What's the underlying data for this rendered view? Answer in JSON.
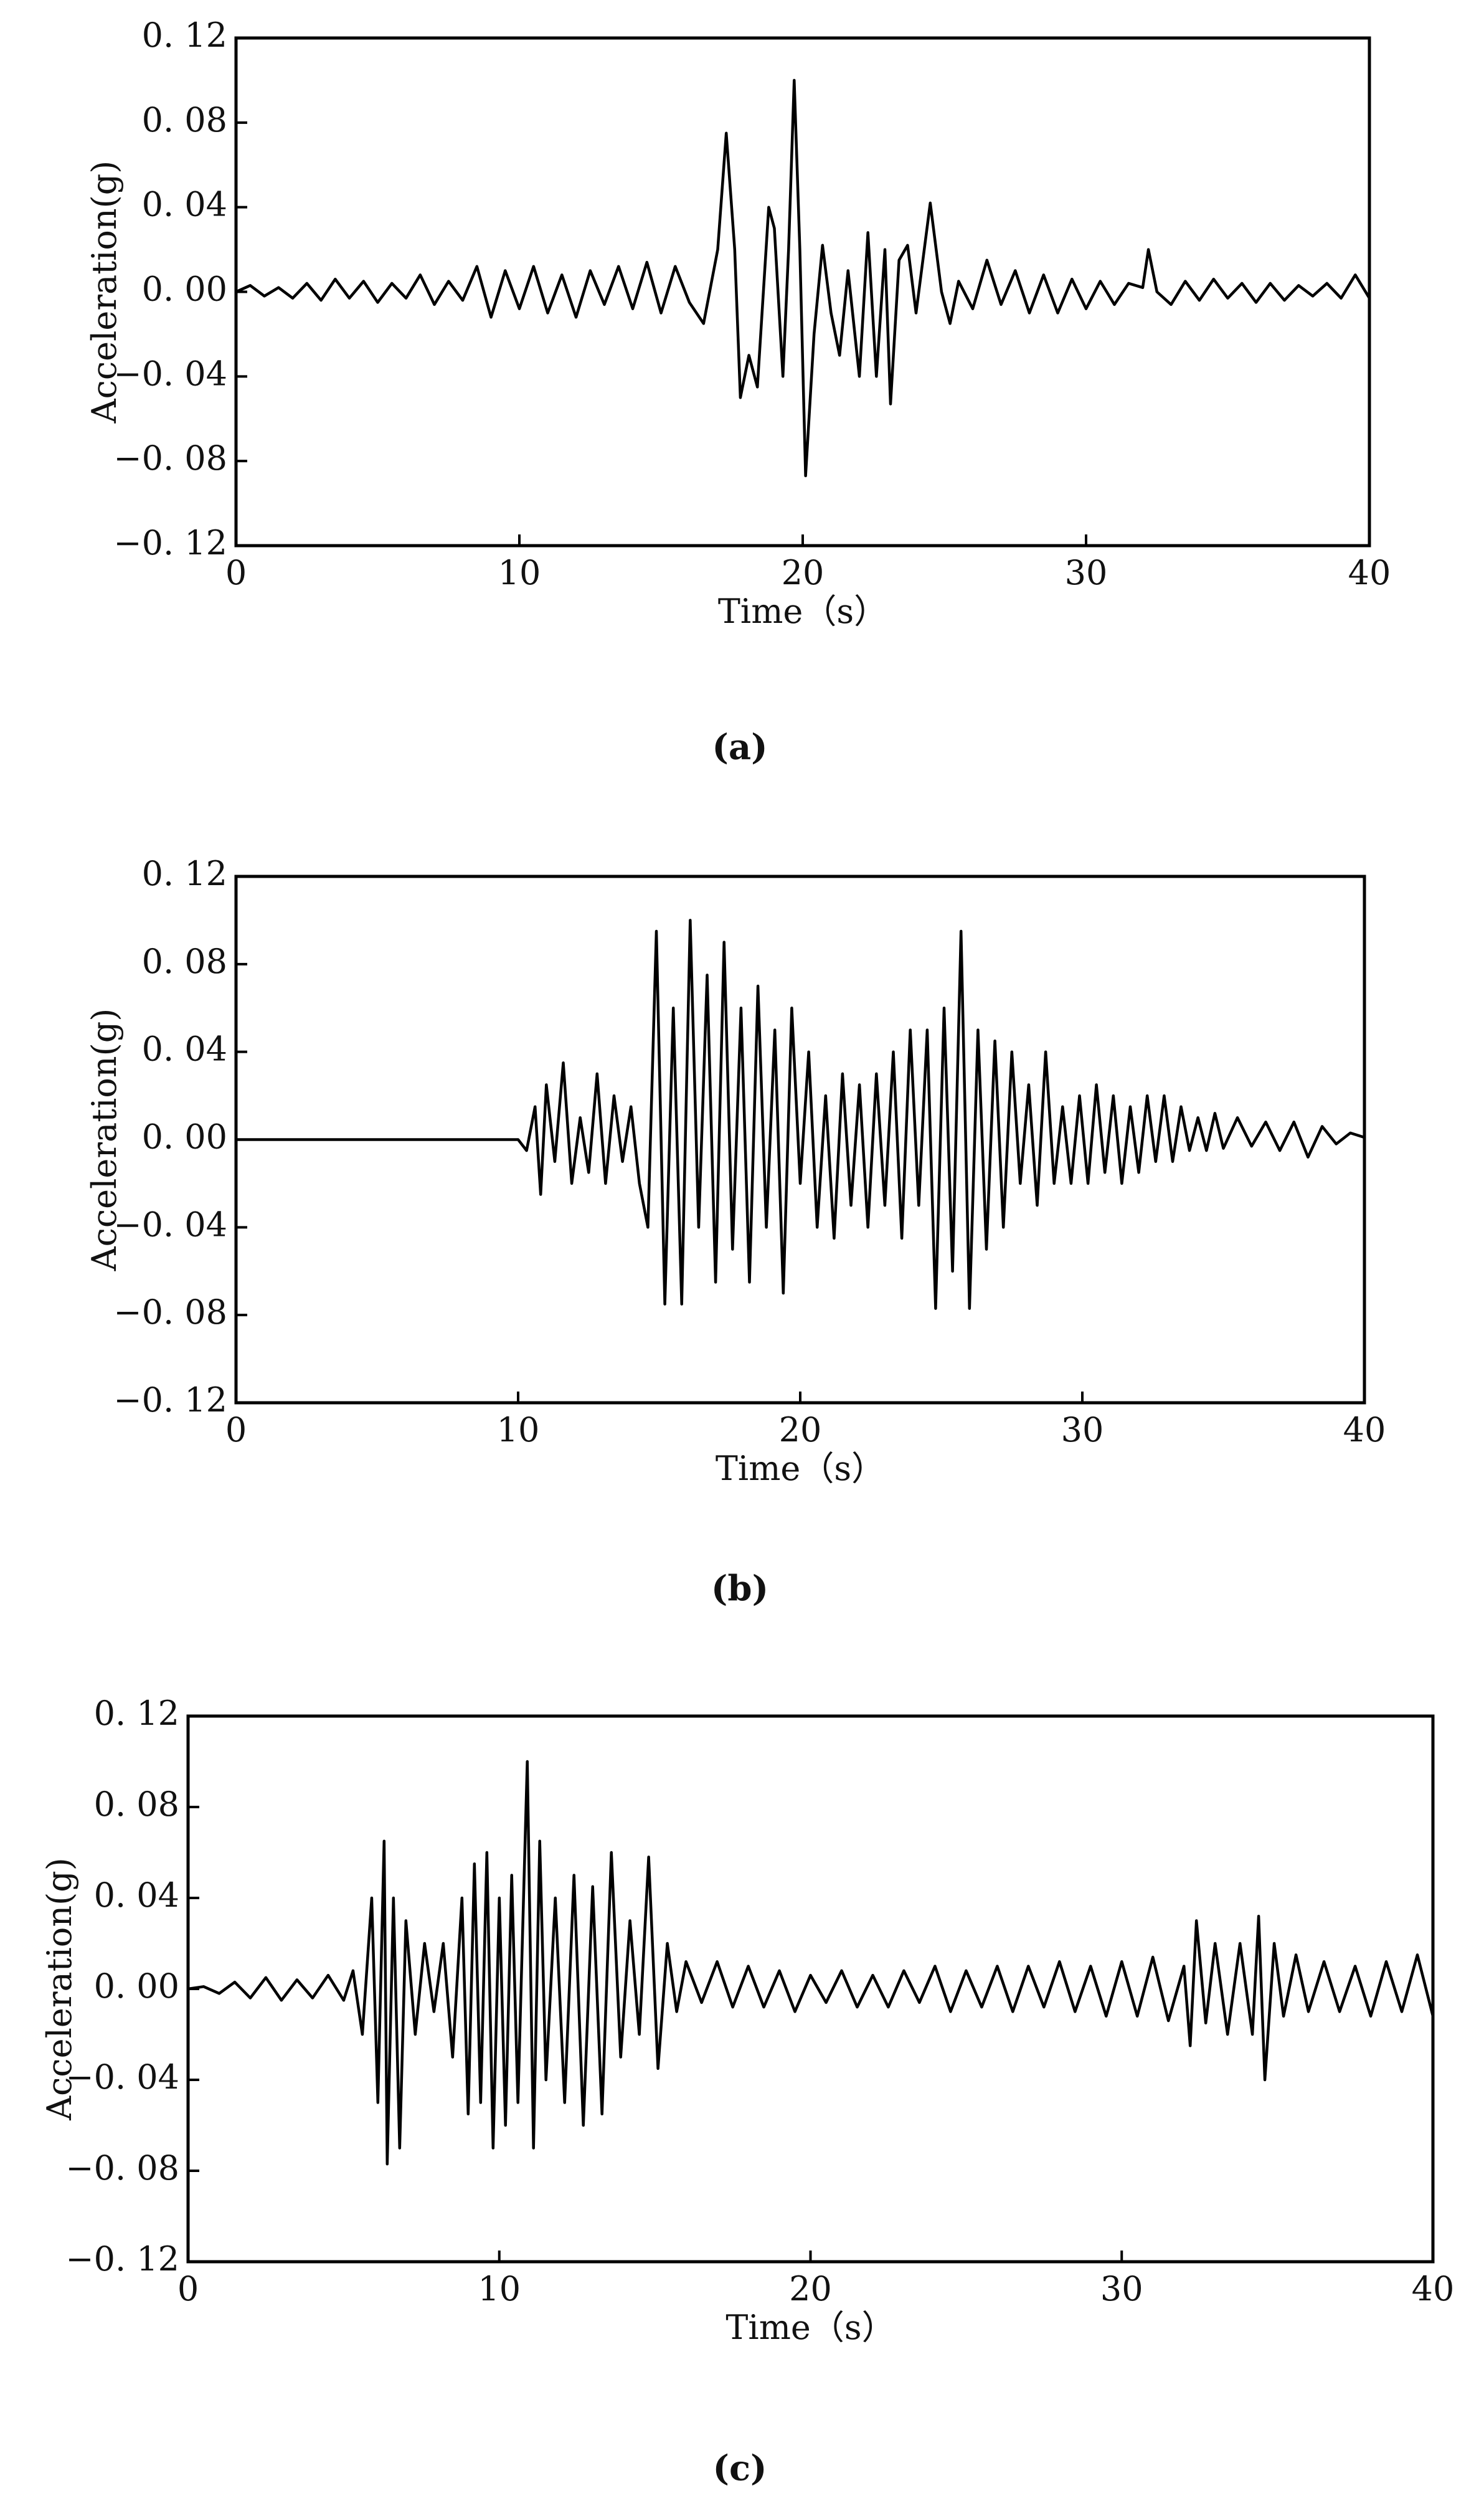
{
  "chart_data": [
    {
      "type": "line",
      "caption": "(a)",
      "xlabel": "Time（s）",
      "ylabel": "Acceleration(g)",
      "xlim": [
        0,
        40
      ],
      "xticks": [
        0,
        10,
        20,
        30,
        40
      ],
      "ylim": [
        -0.12,
        0.12
      ],
      "yticks": [
        {
          "value": -0.12,
          "label": "−0. 12"
        },
        {
          "value": -0.08,
          "label": "−0. 08"
        },
        {
          "value": -0.04,
          "label": "−0. 04"
        },
        {
          "value": 0,
          "label": "0. 00"
        },
        {
          "value": 0.04,
          "label": "0. 04"
        },
        {
          "value": 0.08,
          "label": "0. 08"
        },
        {
          "value": 0.12,
          "label": "0. 12"
        }
      ],
      "color": "#000000",
      "x": [
        0,
        0.5,
        1,
        1.5,
        2,
        2.5,
        3,
        3.5,
        4,
        4.5,
        5,
        5.5,
        6,
        6.5,
        7,
        7.5,
        8,
        8.5,
        9,
        9.5,
        10,
        10.5,
        11,
        11.5,
        12,
        12.5,
        13,
        13.5,
        14,
        14.5,
        15,
        15.5,
        16,
        16.5,
        17,
        17.3,
        17.6,
        17.8,
        18.1,
        18.4,
        18.8,
        19,
        19.3,
        19.5,
        19.7,
        19.9,
        20.1,
        20.4,
        20.7,
        21,
        21.3,
        21.6,
        22,
        22.3,
        22.6,
        22.9,
        23.1,
        23.4,
        23.7,
        24,
        24.5,
        24.9,
        25.2,
        25.5,
        26,
        26.5,
        27,
        27.5,
        28,
        28.5,
        29,
        29.5,
        30,
        30.5,
        31,
        31.5,
        32,
        32.2,
        32.5,
        33,
        33.5,
        34,
        34.5,
        35,
        35.5,
        36,
        36.5,
        37,
        37.5,
        38,
        38.5,
        39,
        39.5,
        40
      ],
      "values": [
        0,
        0.003,
        -0.002,
        0.002,
        -0.003,
        0.004,
        -0.004,
        0.006,
        -0.003,
        0.005,
        -0.005,
        0.004,
        -0.003,
        0.008,
        -0.006,
        0.005,
        -0.004,
        0.012,
        -0.012,
        0.01,
        -0.008,
        0.012,
        -0.01,
        0.008,
        -0.012,
        0.01,
        -0.006,
        0.012,
        -0.008,
        0.014,
        -0.01,
        0.012,
        -0.005,
        -0.015,
        0.02,
        0.075,
        0.02,
        -0.05,
        -0.03,
        -0.045,
        0.04,
        0.03,
        -0.04,
        0.02,
        0.1,
        0.02,
        -0.087,
        -0.02,
        0.022,
        -0.01,
        -0.03,
        0.01,
        -0.04,
        0.028,
        -0.04,
        0.02,
        -0.053,
        0.015,
        0.022,
        -0.01,
        0.042,
        0,
        -0.015,
        0.005,
        -0.008,
        0.015,
        -0.006,
        0.01,
        -0.01,
        0.008,
        -0.01,
        0.006,
        -0.008,
        0.005,
        -0.006,
        0.004,
        0.002,
        0.02,
        0,
        -0.006,
        0.005,
        -0.004,
        0.006,
        -0.003,
        0.004,
        -0.005,
        0.004,
        -0.004,
        0.003,
        -0.002,
        0.004,
        -0.003,
        0.008,
        -0.003
      ]
    },
    {
      "type": "line",
      "caption": "(b)",
      "xlabel": "Time（s）",
      "ylabel": "Acceleration(g)",
      "xlim": [
        0,
        40
      ],
      "xticks": [
        0,
        10,
        20,
        30,
        40
      ],
      "ylim": [
        -0.12,
        0.12
      ],
      "yticks": [
        {
          "value": -0.12,
          "label": "−0. 12"
        },
        {
          "value": -0.08,
          "label": "−0. 08"
        },
        {
          "value": -0.04,
          "label": "−0. 04"
        },
        {
          "value": 0,
          "label": "0. 00"
        },
        {
          "value": 0.04,
          "label": "0. 04"
        },
        {
          "value": 0.08,
          "label": "0. 08"
        },
        {
          "value": 0.12,
          "label": "0. 12"
        }
      ],
      "color": "#000000",
      "x": [
        0,
        10,
        10.3,
        10.6,
        10.8,
        11,
        11.3,
        11.6,
        11.9,
        12.2,
        12.5,
        12.8,
        13.1,
        13.4,
        13.7,
        14,
        14.3,
        14.6,
        14.9,
        15.2,
        15.5,
        15.8,
        16.1,
        16.4,
        16.7,
        17,
        17.3,
        17.6,
        17.9,
        18.2,
        18.5,
        18.8,
        19.1,
        19.4,
        19.7,
        20,
        20.3,
        20.6,
        20.9,
        21.2,
        21.5,
        21.8,
        22.1,
        22.4,
        22.7,
        23,
        23.3,
        23.6,
        23.9,
        24.2,
        24.5,
        24.8,
        25.1,
        25.4,
        25.7,
        26,
        26.3,
        26.6,
        26.9,
        27.2,
        27.5,
        27.8,
        28.1,
        28.4,
        28.7,
        29,
        29.3,
        29.6,
        29.9,
        30.2,
        30.5,
        30.8,
        31.1,
        31.4,
        31.7,
        32,
        32.3,
        32.6,
        32.9,
        33.2,
        33.5,
        33.8,
        34.1,
        34.4,
        34.7,
        35,
        35.5,
        36,
        36.5,
        37,
        37.5,
        38,
        38.5,
        39,
        39.5,
        40
      ],
      "values": [
        0,
        0,
        -0.005,
        0.015,
        -0.025,
        0.025,
        -0.01,
        0.035,
        -0.02,
        0.01,
        -0.015,
        0.03,
        -0.02,
        0.02,
        -0.01,
        0.015,
        -0.02,
        -0.04,
        0.095,
        -0.075,
        0.06,
        -0.075,
        0.1,
        -0.04,
        0.075,
        -0.065,
        0.09,
        -0.05,
        0.06,
        -0.065,
        0.07,
        -0.04,
        0.05,
        -0.07,
        0.06,
        -0.02,
        0.04,
        -0.04,
        0.02,
        -0.045,
        0.03,
        -0.03,
        0.025,
        -0.04,
        0.03,
        -0.03,
        0.04,
        -0.045,
        0.05,
        -0.03,
        0.05,
        -0.077,
        0.06,
        -0.06,
        0.095,
        -0.077,
        0.05,
        -0.05,
        0.045,
        -0.04,
        0.04,
        -0.02,
        0.025,
        -0.03,
        0.04,
        -0.02,
        0.015,
        -0.02,
        0.02,
        -0.02,
        0.025,
        -0.015,
        0.02,
        -0.02,
        0.015,
        -0.015,
        0.02,
        -0.01,
        0.02,
        -0.01,
        0.015,
        -0.005,
        0.01,
        -0.005,
        0.012,
        -0.004,
        0.01,
        -0.003,
        0.008,
        -0.005,
        0.008,
        -0.008,
        0.006,
        -0.002,
        0.003,
        0.001
      ]
    },
    {
      "type": "line",
      "caption": "(c)",
      "xlabel": "Time（s）",
      "ylabel": "Acceleration(g)",
      "xlim": [
        0,
        40
      ],
      "xticks": [
        0,
        10,
        20,
        30,
        40
      ],
      "ylim": [
        -0.12,
        0.12
      ],
      "yticks": [
        {
          "value": -0.12,
          "label": "−0. 12"
        },
        {
          "value": -0.08,
          "label": "−0. 08"
        },
        {
          "value": -0.04,
          "label": "−0. 04"
        },
        {
          "value": 0,
          "label": "0. 00"
        },
        {
          "value": 0.04,
          "label": "0. 04"
        },
        {
          "value": 0.08,
          "label": "0. 08"
        },
        {
          "value": 0.12,
          "label": "0. 12"
        }
      ],
      "color": "#000000",
      "x": [
        0,
        0.5,
        1,
        1.5,
        2,
        2.5,
        3,
        3.5,
        4,
        4.5,
        5,
        5.3,
        5.6,
        5.9,
        6.1,
        6.3,
        6.4,
        6.6,
        6.8,
        7,
        7.3,
        7.6,
        7.9,
        8.2,
        8.5,
        8.8,
        9,
        9.2,
        9.4,
        9.6,
        9.8,
        10,
        10.2,
        10.4,
        10.6,
        10.9,
        11.1,
        11.3,
        11.5,
        11.8,
        12.1,
        12.4,
        12.7,
        13,
        13.3,
        13.6,
        13.9,
        14.2,
        14.5,
        14.8,
        15.1,
        15.4,
        15.7,
        16,
        16.5,
        17,
        17.5,
        18,
        18.5,
        19,
        19.5,
        20,
        20.5,
        21,
        21.5,
        22,
        22.5,
        23,
        23.5,
        24,
        24.5,
        25,
        25.5,
        26,
        26.5,
        27,
        27.5,
        28,
        28.5,
        29,
        29.5,
        30,
        30.5,
        31,
        31.5,
        32,
        32.2,
        32.4,
        32.7,
        33,
        33.4,
        33.8,
        34.2,
        34.4,
        34.6,
        34.9,
        35.2,
        35.6,
        36,
        36.5,
        37,
        37.5,
        38,
        38.5,
        39,
        39.5,
        40
      ],
      "values": [
        0,
        0.001,
        -0.002,
        0.003,
        -0.004,
        0.005,
        -0.005,
        0.004,
        -0.004,
        0.006,
        -0.005,
        0.008,
        -0.02,
        0.04,
        -0.05,
        0.065,
        -0.077,
        0.04,
        -0.07,
        0.03,
        -0.02,
        0.02,
        -0.01,
        0.02,
        -0.03,
        0.04,
        -0.055,
        0.055,
        -0.05,
        0.06,
        -0.07,
        0.04,
        -0.06,
        0.05,
        -0.05,
        0.1,
        -0.07,
        0.065,
        -0.04,
        0.04,
        -0.05,
        0.05,
        -0.06,
        0.045,
        -0.055,
        0.06,
        -0.03,
        0.03,
        -0.02,
        0.058,
        -0.035,
        0.02,
        -0.01,
        0.012,
        -0.006,
        0.012,
        -0.008,
        0.01,
        -0.008,
        0.008,
        -0.01,
        0.006,
        -0.006,
        0.008,
        -0.008,
        0.006,
        -0.008,
        0.008,
        -0.006,
        0.01,
        -0.01,
        0.008,
        -0.008,
        0.01,
        -0.01,
        0.01,
        -0.008,
        0.012,
        -0.01,
        0.01,
        -0.012,
        0.012,
        -0.012,
        0.014,
        -0.014,
        0.01,
        -0.025,
        0.03,
        -0.015,
        0.02,
        -0.02,
        0.02,
        -0.02,
        0.032,
        -0.04,
        0.02,
        -0.012,
        0.015,
        -0.01,
        0.012,
        -0.01,
        0.01,
        -0.012,
        0.012,
        -0.01,
        0.015,
        -0.012
      ]
    }
  ]
}
